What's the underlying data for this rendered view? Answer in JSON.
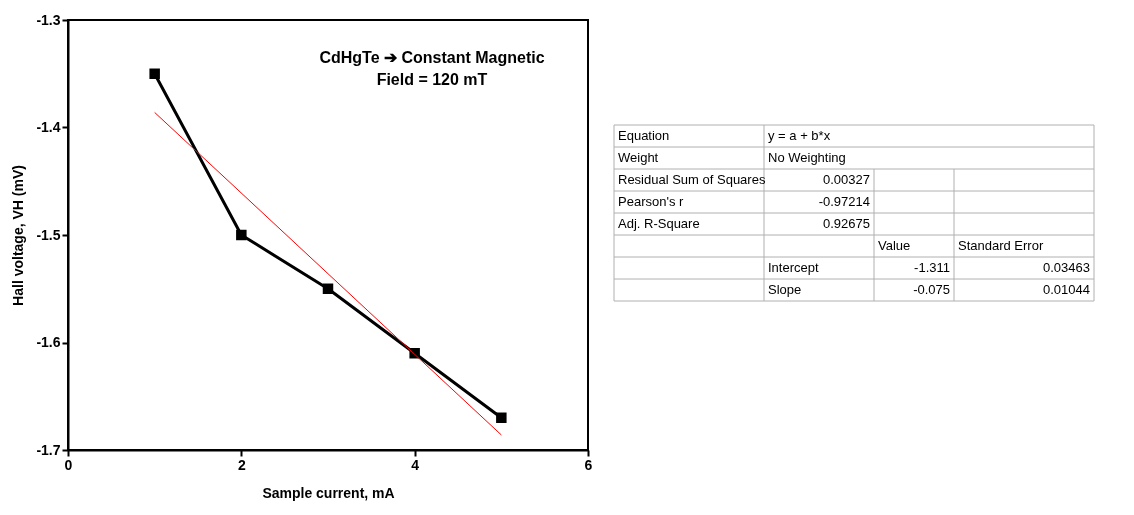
{
  "chart_data": [
    {
      "type": "line",
      "xlabel": "Sample current, mA",
      "ylabel": "Hall voltage, VH (mV)",
      "x": [
        1,
        2,
        3,
        4,
        5
      ],
      "series": [
        {
          "color": "#000000",
          "values": [
            -1.35,
            -1.5,
            -1.55,
            -1.61,
            -1.67
          ]
        },
        {
          "color": "#ff0000",
          "x": [
            1,
            5
          ],
          "values": [
            -1.386,
            -1.686
          ],
          "marker": "none"
        }
      ],
      "marker": "square",
      "xlim": [
        0,
        6
      ],
      "xticks": [
        0,
        2,
        4,
        6
      ],
      "ylim": [
        -1.7,
        -1.3
      ],
      "yticks": [
        -1.7,
        -1.6,
        -1.5,
        -1.4,
        -1.3
      ],
      "grid": false,
      "annotations": [
        "CdHgTe ➔ Constant Magnetic\nField = 120 mT"
      ]
    },
    {
      "type": "other",
      "annotations": [
        "Equation\ty = a + b*x",
        "Weight\tNo Weighting",
        "Residual Sum of Squares\t0.00327\t\t",
        "Pearson's r\t-0.97214\t\t",
        "Adj. R-Square\t0.92675\t\t",
        "\t\tValue\tStandard Error",
        "\tIntercept\t-1.311\t0.03463",
        "\tSlope\t-0.075\t0.01044"
      ]
    }
  ]
}
